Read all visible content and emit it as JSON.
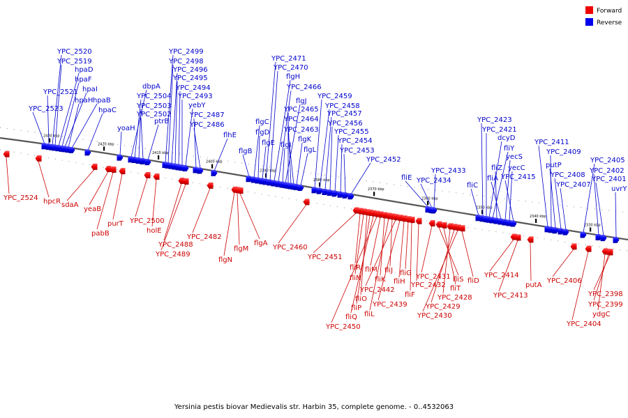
{
  "caption": "Yersinia pestis biovar Medievalis str. Harbin 35, complete genome. - 0..4532063",
  "legend": [
    {
      "label": "Forward",
      "color": "#ee0000"
    },
    {
      "label": "Reverse",
      "color": "#0000ee"
    }
  ],
  "ticks": [
    "2430 kbp",
    "2420 kbp",
    "2410 kbp",
    "2400 kbp",
    "2390 kbp",
    "2380 kbp",
    "2370 kbp",
    "2360 kbp",
    "2350 kbp",
    "2340 kbp",
    "2330 kbp"
  ],
  "reverse_genes": [
    "YPC_2523",
    "YPC_2521",
    "YPC_2520",
    "YPC_2519",
    "hpaD",
    "hpaF",
    "hpaI",
    "hpaH",
    "hpaB",
    "hpaC",
    "yoaH",
    "dbpA",
    "YPC_2504",
    "YPC_2503",
    "YPC_2502",
    "ptrB",
    "YPC_2499",
    "YPC_2498",
    "YPC_2496",
    "YPC_2495",
    "YPC_2494",
    "YPC_2493",
    "yebY",
    "YPC_2487",
    "YPC_2486",
    "flhE",
    "flgB",
    "flgC",
    "flgD",
    "flgE",
    "YPC_2471",
    "YPC_2470",
    "flgH",
    "YPC_2466",
    "flgI",
    "flgJ",
    "YPC_2465",
    "YPC_2464",
    "YPC_2463",
    "flgK",
    "flgL",
    "YPC_2459",
    "YPC_2458",
    "YPC_2457",
    "YPC_2456",
    "YPC_2455",
    "YPC_2454",
    "YPC_2453",
    "YPC_2452",
    "fliE",
    "YPC_2434",
    "YPC_2433",
    "fliC",
    "YPC_2423",
    "YPC_2421",
    "dcyD",
    "fliY",
    "fliZ",
    "fliA",
    "yecS",
    "yecC",
    "YPC_2415",
    "YPC_2411",
    "YPC_2409",
    "putP",
    "YPC_2408",
    "YPC_2407",
    "YPC_2405",
    "YPC_2402",
    "YPC_2401",
    "uvrY"
  ],
  "forward_genes": [
    "YPC_2524",
    "hpcR",
    "sdaA",
    "yeaB",
    "pabB",
    "purT",
    "YPC_2500",
    "holE",
    "YPC_2488",
    "YPC_2489",
    "YPC_2482",
    "flgN",
    "flgM",
    "flgA",
    "YPC_2460",
    "YPC_2451",
    "fliR",
    "fliN",
    "fliO",
    "fliP",
    "fliQ",
    "YPC_2450",
    "fliM",
    "fliK",
    "fliL",
    "fliJ",
    "YPC_2442",
    "YPC_2439",
    "fliH",
    "fliG",
    "fliF",
    "YPC_2432",
    "YPC_2431",
    "fliS",
    "fliT",
    "YPC_2428",
    "YPC_2429",
    "YPC_2430",
    "fliD",
    "YPC_2414",
    "YPC_2413",
    "putA",
    "YPC_2406",
    "YPC_2404",
    "ydgC",
    "YPC_2399",
    "YPC_2398"
  ]
}
